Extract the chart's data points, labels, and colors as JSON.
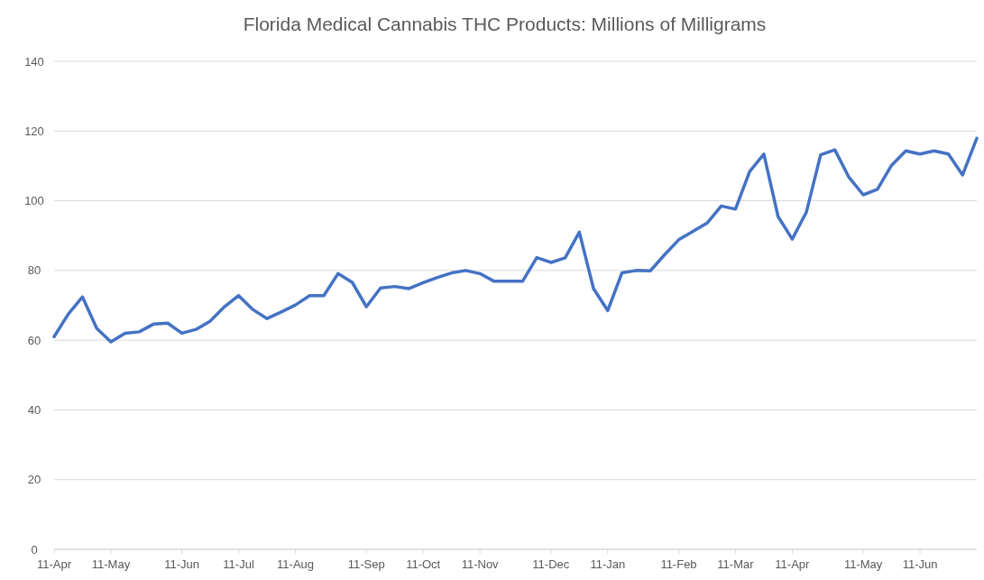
{
  "chart_data": {
    "type": "line",
    "title": "Florida Medical Cannabis THC Products: Millions of Milligrams",
    "categories": [
      "11-Apr",
      null,
      null,
      null,
      "11-May",
      null,
      null,
      null,
      null,
      "11-Jun",
      null,
      null,
      null,
      "11-Jul",
      null,
      null,
      null,
      "11-Aug",
      null,
      null,
      null,
      null,
      "11-Sep",
      null,
      null,
      null,
      "11-Oct",
      null,
      null,
      null,
      "11-Nov",
      null,
      null,
      null,
      null,
      "11-Dec",
      null,
      null,
      null,
      "11-Jan",
      null,
      null,
      null,
      null,
      "11-Feb",
      null,
      null,
      null,
      "11-Mar",
      null,
      null,
      null,
      "11-Apr",
      null,
      null,
      null,
      null,
      "11-May",
      null,
      null,
      null,
      "11-Jun",
      null,
      null,
      null,
      null
    ],
    "series": [
      {
        "color": "#4472c4",
        "values": [
          61,
          67.5,
          72.4,
          63.4,
          59.5,
          62,
          62.4,
          64.6,
          64.9,
          62,
          63.1,
          65.5,
          69.6,
          72.8,
          68.8,
          66.2,
          68.1,
          70.1,
          72.8,
          72.8,
          79.1,
          76.6,
          69.6,
          75,
          75.4,
          74.8,
          76.5,
          78,
          79.3,
          80,
          79.1,
          76.9,
          76.9,
          76.9,
          83.7,
          82.3,
          83.6,
          91,
          74.8,
          68.5,
          79.3,
          80,
          79.9,
          84.5,
          88.8,
          91.2,
          93.6,
          98.5,
          97.6,
          108.4,
          113.4,
          95.5,
          89,
          96.8,
          113.2,
          114.6,
          106.7,
          101.7,
          103.3,
          110.2,
          114.3,
          113.4,
          114.3,
          113.4,
          107.4,
          117.9
        ]
      }
    ],
    "ylim": [
      0,
      140
    ],
    "yticks": [
      0,
      20,
      40,
      60,
      80,
      100,
      120,
      140
    ],
    "grid": "y",
    "marker": "none",
    "line_style": "solid"
  }
}
